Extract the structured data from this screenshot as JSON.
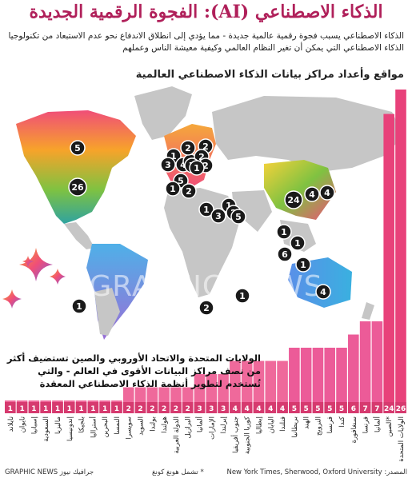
{
  "title": "الذكاء الاصطناعي (AI): الفجوة الرقمية الجديدة",
  "subtitle": "الذكاء الاصطناعي يسبب فجوة رقمية عالمية جديدة - مما يؤدي إلى انطلاق الاندفاع نحو عدم الاستبعاد من تكنولوجيا الذكاء الاصطناعي التي يمكن أن تغير النظام العالمي وكيفية معيشة الناس وعملهم",
  "subheading": "مواقع وأعداد مراكز بيانات الذكاء الاصطناعي العالمية",
  "watermark": "GRAPHIC NEWS",
  "callout": "الولايات المتحدة والاتحاد الأوروبي والصين تستضيف أكثر من نصف مراكز البيانات الأقوى في العالم - والتي تُستخدم لتطوير أنظمة الذكاء الاصطناعي المعقدة",
  "source": "المصدر: New York Times, Sherwood, Oxford University",
  "footnote": "* تشمل هونغ كونغ",
  "credit": "GRAPHIC NEWS جرافيك نيوز",
  "colors": {
    "title": "#b0205a",
    "bar_gradient": [
      "#e8417a",
      "#c04fd0",
      "#5a9ee8"
    ],
    "marker": "#1a1a1a",
    "land_highlight_gradient": [
      "#f0407a",
      "#f7a32a",
      "#6cc24a",
      "#3aa0d8"
    ],
    "land_gray": "#c6c6c6"
  },
  "map_markers": [
    {
      "label": "5"
    },
    {
      "label": "26"
    },
    {
      "label": "2"
    },
    {
      "label": "1"
    },
    {
      "label": "4"
    },
    {
      "label": "1"
    },
    {
      "label": "2"
    },
    {
      "label": "2"
    },
    {
      "label": "3"
    },
    {
      "label": "7"
    },
    {
      "label": "2"
    },
    {
      "label": "5"
    },
    {
      "label": "2"
    },
    {
      "label": "1"
    },
    {
      "label": "1"
    },
    {
      "label": "2"
    },
    {
      "label": "1"
    },
    {
      "label": "3"
    },
    {
      "label": "5"
    },
    {
      "label": "24"
    },
    {
      "label": "4"
    },
    {
      "label": "4"
    },
    {
      "label": "1"
    },
    {
      "label": "1"
    },
    {
      "label": "6"
    },
    {
      "label": "1"
    },
    {
      "label": "4"
    },
    {
      "label": "1"
    },
    {
      "label": "1"
    },
    {
      "label": "2"
    },
    {
      "label": "1"
    }
  ],
  "chart_data": {
    "type": "bar",
    "title": "",
    "xlabel": "",
    "ylabel": "",
    "categories": [
      "تايلاند",
      "تايوان",
      "إسبانيا",
      "السعودية",
      "ماليزيا",
      "إندونيسيا",
      "بلجيكا",
      "أستراليا",
      "البحرين",
      "النمسا",
      "سويسرا",
      "السويد",
      "بولندا",
      "هولندا",
      "الدولة العربية",
      "البرازيل",
      "ألمانيا",
      "الإمارات",
      "إيرلندا",
      "جنوب أفريقيا",
      "كوريا الجنوبية",
      "إيطاليا",
      "اليابان",
      "فنلندا",
      "بريطانيا",
      "الهند",
      "النرويج",
      "فرنسا",
      "كندا",
      "سنغافورة",
      "فرنسا",
      "ألمانيا",
      "الصين*",
      "الولايات المتحدة"
    ],
    "values": [
      1,
      1,
      1,
      1,
      1,
      1,
      1,
      1,
      1,
      1,
      2,
      2,
      2,
      2,
      2,
      2,
      3,
      3,
      3,
      4,
      4,
      4,
      4,
      4,
      5,
      5,
      5,
      5,
      5,
      6,
      7,
      7,
      24,
      26
    ],
    "value_labels": [
      "1",
      "1",
      "1",
      "1",
      "1",
      "1",
      "1",
      "1",
      "1",
      "1",
      "2",
      "2",
      "2",
      "2",
      "2",
      "2",
      "3",
      "3",
      "3",
      "4",
      "4",
      "4",
      "4",
      "4",
      "5",
      "5",
      "5",
      "5",
      "5",
      "6",
      "7",
      "7",
      "24",
      "26"
    ],
    "ylim": [
      0,
      26
    ]
  }
}
